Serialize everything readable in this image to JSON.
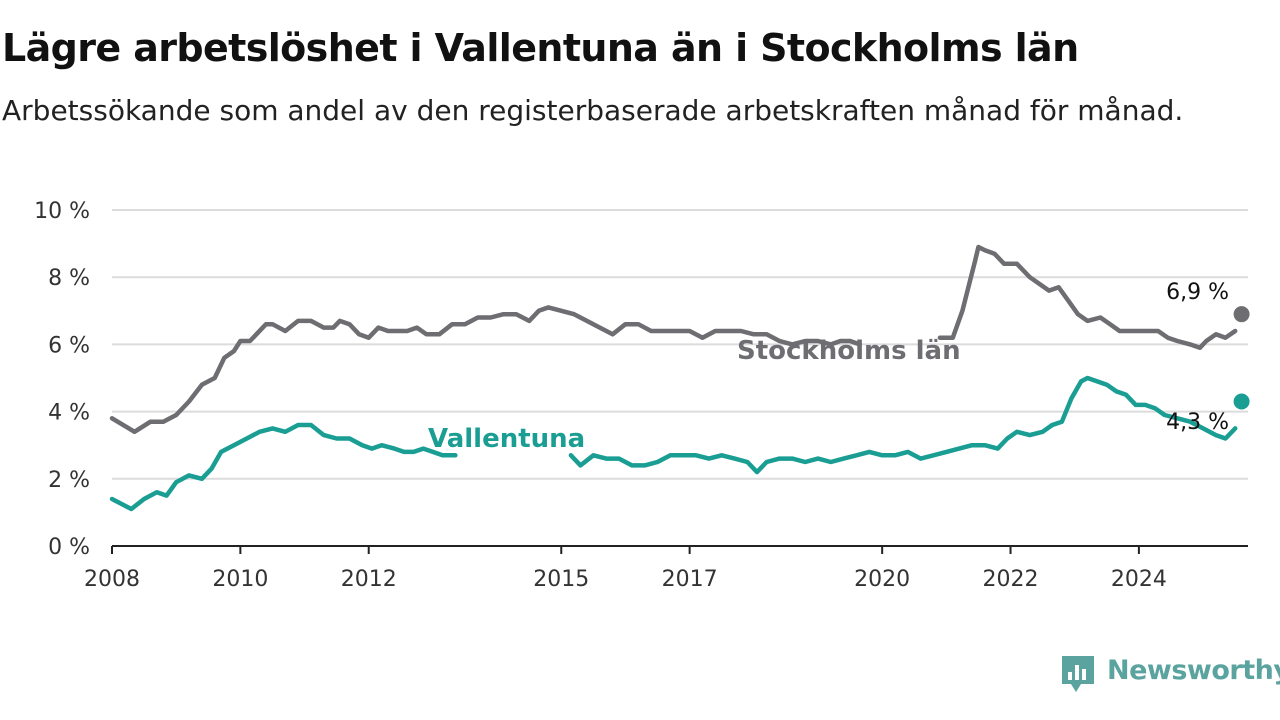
{
  "header": {
    "title": "Lägre arbetslöshet i Vallentuna än i Stockholms län",
    "subtitle": "Arbetssökande som andel av den registerbaserade arbetskraften månad för månad."
  },
  "brand": {
    "name": "Newsworthy",
    "icon": "newsworthy-logo-icon",
    "color": "#5aa39f"
  },
  "chart_data": {
    "type": "line",
    "title": "Lägre arbetslöshet i Vallentuna än i Stockholms län",
    "subtitle": "Arbetssökande som andel av den registerbaserade arbetskraften månad för månad.",
    "ylim": [
      0,
      10
    ],
    "yticks": [
      0,
      2,
      4,
      6,
      8,
      10
    ],
    "ytick_labels": [
      "0 %",
      "2 %",
      "4 %",
      "6 %",
      "8 %",
      "10 %"
    ],
    "xlim": [
      2008,
      2025.7
    ],
    "xticks": [
      2008,
      2010,
      2012,
      2015,
      2017,
      2020,
      2022,
      2024
    ],
    "xtick_labels": [
      "2008",
      "2010",
      "2012",
      "2015",
      "2017",
      "2020",
      "2022",
      "2024"
    ],
    "grid": "horizontal",
    "series": [
      {
        "name": "Stockholms län",
        "color": "#6d6d72",
        "end_label": "6,9 %",
        "segments": [
          [
            [
              2008.0,
              3.8
            ],
            [
              2008.35,
              3.4
            ],
            [
              2008.6,
              3.7
            ],
            [
              2008.8,
              3.7
            ],
            [
              2009.0,
              3.9
            ],
            [
              2009.2,
              4.3
            ],
            [
              2009.4,
              4.8
            ],
            [
              2009.6,
              5.0
            ],
            [
              2009.75,
              5.6
            ],
            [
              2009.9,
              5.8
            ],
            [
              2010.0,
              6.1
            ],
            [
              2010.15,
              6.1
            ],
            [
              2010.4,
              6.6
            ],
            [
              2010.5,
              6.6
            ],
            [
              2010.7,
              6.4
            ],
            [
              2010.9,
              6.7
            ],
            [
              2011.1,
              6.7
            ],
            [
              2011.3,
              6.5
            ],
            [
              2011.45,
              6.5
            ],
            [
              2011.55,
              6.7
            ],
            [
              2011.7,
              6.6
            ],
            [
              2011.85,
              6.3
            ],
            [
              2012.0,
              6.2
            ],
            [
              2012.15,
              6.5
            ],
            [
              2012.3,
              6.4
            ],
            [
              2012.45,
              6.4
            ],
            [
              2012.6,
              6.4
            ],
            [
              2012.75,
              6.5
            ],
            [
              2012.9,
              6.3
            ],
            [
              2013.1,
              6.3
            ],
            [
              2013.3,
              6.6
            ],
            [
              2013.5,
              6.6
            ],
            [
              2013.7,
              6.8
            ],
            [
              2013.9,
              6.8
            ],
            [
              2014.1,
              6.9
            ],
            [
              2014.3,
              6.9
            ],
            [
              2014.5,
              6.7
            ],
            [
              2014.65,
              7.0
            ],
            [
              2014.8,
              7.1
            ],
            [
              2015.0,
              7.0
            ],
            [
              2015.2,
              6.9
            ],
            [
              2015.4,
              6.7
            ],
            [
              2015.6,
              6.5
            ],
            [
              2015.8,
              6.3
            ],
            [
              2016.0,
              6.6
            ],
            [
              2016.2,
              6.6
            ],
            [
              2016.4,
              6.4
            ],
            [
              2016.6,
              6.4
            ],
            [
              2016.8,
              6.4
            ],
            [
              2017.0,
              6.4
            ],
            [
              2017.2,
              6.2
            ],
            [
              2017.4,
              6.4
            ],
            [
              2017.6,
              6.4
            ],
            [
              2017.8,
              6.4
            ],
            [
              2018.0,
              6.3
            ],
            [
              2018.2,
              6.3
            ],
            [
              2018.4,
              6.1
            ],
            [
              2018.6,
              6.0
            ],
            [
              2018.8,
              6.1
            ],
            [
              2019.0,
              6.1
            ],
            [
              2019.2,
              6.0
            ],
            [
              2019.35,
              6.1
            ],
            [
              2019.5,
              6.1
            ],
            [
              2019.65,
              6.0
            ]
          ],
          [
            [
              2020.9,
              6.2
            ],
            [
              2021.1,
              6.2
            ],
            [
              2021.25,
              7.0
            ],
            [
              2021.45,
              8.5
            ],
            [
              2021.5,
              8.9
            ],
            [
              2021.6,
              8.8
            ],
            [
              2021.75,
              8.7
            ],
            [
              2021.9,
              8.4
            ],
            [
              2022.1,
              8.4
            ],
            [
              2022.3,
              8.0
            ],
            [
              2022.6,
              7.6
            ],
            [
              2022.75,
              7.7
            ],
            [
              2022.9,
              7.3
            ],
            [
              2023.05,
              6.9
            ],
            [
              2023.2,
              6.7
            ],
            [
              2023.4,
              6.8
            ],
            [
              2023.55,
              6.6
            ],
            [
              2023.7,
              6.4
            ],
            [
              2023.9,
              6.4
            ],
            [
              2024.1,
              6.4
            ],
            [
              2024.3,
              6.4
            ],
            [
              2024.45,
              6.2
            ],
            [
              2024.6,
              6.1
            ],
            [
              2024.8,
              6.0
            ],
            [
              2024.95,
              5.9
            ],
            [
              2025.05,
              6.1
            ],
            [
              2025.2,
              6.3
            ],
            [
              2025.35,
              6.2
            ],
            [
              2025.5,
              6.4
            ]
          ]
        ],
        "marker_x": 2025.6,
        "marker_y": 6.9
      },
      {
        "name": "Vallentuna",
        "color": "#1a9e94",
        "end_label": "4,3 %",
        "segments": [
          [
            [
              2008.0,
              1.4
            ],
            [
              2008.3,
              1.1
            ],
            [
              2008.5,
              1.4
            ],
            [
              2008.7,
              1.6
            ],
            [
              2008.85,
              1.5
            ],
            [
              2009.0,
              1.9
            ],
            [
              2009.2,
              2.1
            ],
            [
              2009.4,
              2.0
            ],
            [
              2009.55,
              2.3
            ],
            [
              2009.7,
              2.8
            ],
            [
              2009.9,
              3.0
            ],
            [
              2010.1,
              3.2
            ],
            [
              2010.3,
              3.4
            ],
            [
              2010.5,
              3.5
            ],
            [
              2010.7,
              3.4
            ],
            [
              2010.9,
              3.6
            ],
            [
              2011.1,
              3.6
            ],
            [
              2011.3,
              3.3
            ],
            [
              2011.5,
              3.2
            ],
            [
              2011.7,
              3.2
            ],
            [
              2011.9,
              3.0
            ],
            [
              2012.05,
              2.9
            ],
            [
              2012.2,
              3.0
            ],
            [
              2012.4,
              2.9
            ],
            [
              2012.55,
              2.8
            ],
            [
              2012.7,
              2.8
            ],
            [
              2012.85,
              2.9
            ],
            [
              2013.0,
              2.8
            ],
            [
              2013.15,
              2.7
            ],
            [
              2013.35,
              2.7
            ]
          ],
          [
            [
              2015.15,
              2.7
            ],
            [
              2015.3,
              2.4
            ],
            [
              2015.5,
              2.7
            ],
            [
              2015.7,
              2.6
            ],
            [
              2015.9,
              2.6
            ],
            [
              2016.1,
              2.4
            ],
            [
              2016.3,
              2.4
            ],
            [
              2016.5,
              2.5
            ],
            [
              2016.7,
              2.7
            ],
            [
              2016.9,
              2.7
            ],
            [
              2017.1,
              2.7
            ],
            [
              2017.3,
              2.6
            ],
            [
              2017.5,
              2.7
            ],
            [
              2017.7,
              2.6
            ],
            [
              2017.9,
              2.5
            ],
            [
              2018.05,
              2.2
            ],
            [
              2018.2,
              2.5
            ],
            [
              2018.4,
              2.6
            ],
            [
              2018.6,
              2.6
            ],
            [
              2018.8,
              2.5
            ],
            [
              2019.0,
              2.6
            ],
            [
              2019.2,
              2.5
            ],
            [
              2019.4,
              2.6
            ],
            [
              2019.6,
              2.7
            ],
            [
              2019.8,
              2.8
            ],
            [
              2020.0,
              2.7
            ],
            [
              2020.2,
              2.7
            ],
            [
              2020.4,
              2.8
            ],
            [
              2020.6,
              2.6
            ],
            [
              2020.8,
              2.7
            ],
            [
              2021.0,
              2.8
            ],
            [
              2021.2,
              2.9
            ],
            [
              2021.4,
              3.0
            ],
            [
              2021.6,
              3.0
            ],
            [
              2021.8,
              2.9
            ],
            [
              2021.95,
              3.2
            ],
            [
              2022.1,
              3.4
            ],
            [
              2022.3,
              3.3
            ],
            [
              2022.5,
              3.4
            ],
            [
              2022.65,
              3.6
            ],
            [
              2022.8,
              3.7
            ],
            [
              2022.95,
              4.4
            ],
            [
              2023.1,
              4.9
            ],
            [
              2023.2,
              5.0
            ],
            [
              2023.35,
              4.9
            ],
            [
              2023.5,
              4.8
            ],
            [
              2023.65,
              4.6
            ],
            [
              2023.8,
              4.5
            ],
            [
              2023.95,
              4.2
            ],
            [
              2024.1,
              4.2
            ],
            [
              2024.25,
              4.1
            ],
            [
              2024.4,
              3.9
            ],
            [
              2024.6,
              3.8
            ],
            [
              2024.8,
              3.7
            ],
            [
              2025.0,
              3.5
            ],
            [
              2025.2,
              3.3
            ],
            [
              2025.35,
              3.2
            ],
            [
              2025.5,
              3.5
            ]
          ]
        ],
        "marker_x": 2025.6,
        "marker_y": 4.3
      }
    ]
  }
}
